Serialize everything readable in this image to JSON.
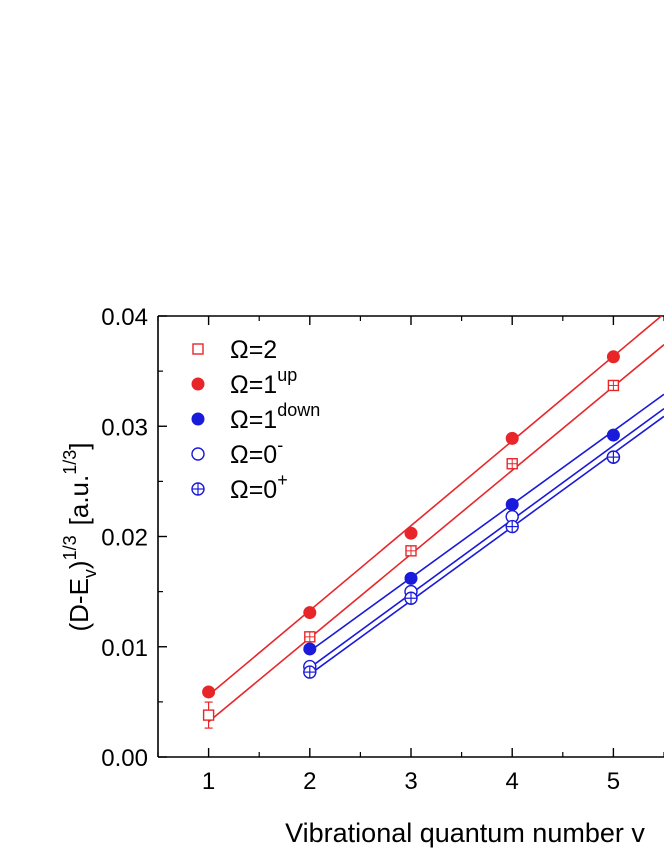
{
  "chart_data": {
    "type": "scatter",
    "xlabel": "Vibrational quantum number v",
    "ylabel": {
      "base": "(D-E",
      "sub": "v",
      "close": ")",
      "sup": "1/3",
      "unit_open": "[a.u.",
      "unit_sup": "1/3",
      "unit_close": "]"
    },
    "xlim": [
      0.5,
      5.5
    ],
    "ylim": [
      0.0,
      0.04
    ],
    "x_ticks": [
      "1",
      "2",
      "3",
      "4",
      "5"
    ],
    "y_ticks": [
      "0.00",
      "0.01",
      "0.02",
      "0.03",
      "0.04"
    ],
    "legend_position": "top-left",
    "series": [
      {
        "name": "Ω=2",
        "label": {
          "base": "Ω=2",
          "sup": ""
        },
        "color": "#e8262a",
        "marker": "open-square",
        "x": [
          1,
          2,
          3,
          4,
          5
        ],
        "y": [
          0.0038,
          0.0109,
          0.0187,
          0.0266,
          0.0337
        ],
        "fit": [
          [
            1,
            0.0032
          ],
          [
            5.5,
            0.0374
          ]
        ]
      },
      {
        "name": "Ω=1up",
        "label": {
          "base": "Ω=1",
          "sup": "up"
        },
        "color": "#e8262a",
        "marker": "filled-circle",
        "x": [
          1,
          2,
          3,
          4,
          5
        ],
        "y": [
          0.0059,
          0.0131,
          0.0203,
          0.0289,
          0.0363
        ],
        "fit": [
          [
            1,
            0.0056
          ],
          [
            5.5,
            0.0402
          ]
        ]
      },
      {
        "name": "Ω=1down",
        "label": {
          "base": "Ω=1",
          "sup": "down"
        },
        "color": "#1a1adb",
        "marker": "filled-circle",
        "x": [
          2,
          3,
          4,
          5
        ],
        "y": [
          0.0098,
          0.0162,
          0.0229,
          0.0292
        ],
        "fit": [
          [
            2,
            0.0096
          ],
          [
            5.5,
            0.0329
          ]
        ]
      },
      {
        "name": "Ω=0-",
        "label": {
          "base": "Ω=0",
          "sup": "-"
        },
        "color": "#1a1adb",
        "marker": "open-circle",
        "x": [
          2,
          3,
          4,
          5
        ],
        "y": [
          0.0082,
          0.015,
          0.0218,
          0.0272
        ],
        "fit": [
          [
            2,
            0.0081
          ],
          [
            5.5,
            0.0316
          ]
        ]
      },
      {
        "name": "Ω=0+",
        "label": {
          "base": "Ω=0",
          "sup": "+"
        },
        "color": "#1a1adb",
        "marker": "crossed-circle",
        "x": [
          2,
          3,
          4,
          5
        ],
        "y": [
          0.0077,
          0.0144,
          0.0209,
          0.0272
        ],
        "fit": [
          [
            2,
            0.0075
          ],
          [
            5.5,
            0.0309
          ]
        ]
      }
    ]
  }
}
